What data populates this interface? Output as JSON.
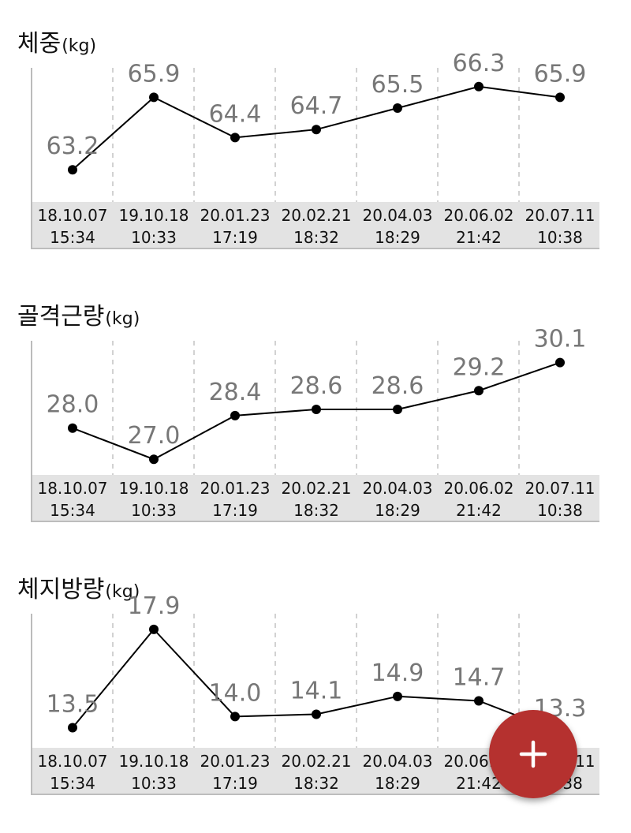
{
  "charts": [
    {
      "title": "체중",
      "unit": "(kg)",
      "chart_data": {
        "type": "line",
        "title": "체중(kg)",
        "ylim": [
          62,
          67
        ],
        "categories": [
          [
            "18.10.07",
            "15:34"
          ],
          [
            "19.10.18",
            "10:33"
          ],
          [
            "20.01.23",
            "17:19"
          ],
          [
            "20.02.21",
            "18:32"
          ],
          [
            "20.04.03",
            "18:29"
          ],
          [
            "20.06.02",
            "21:42"
          ],
          [
            "20.07.11",
            "10:38"
          ]
        ],
        "values": [
          63.2,
          65.9,
          64.4,
          64.7,
          65.5,
          66.3,
          65.9
        ],
        "labels": [
          "63.2",
          "65.9",
          "64.4",
          "64.7",
          "65.5",
          "66.3",
          "65.9"
        ]
      }
    },
    {
      "title": "골격근량",
      "unit": "(kg)",
      "chart_data": {
        "type": "line",
        "title": "골격근량(kg)",
        "ylim": [
          26.5,
          30.8
        ],
        "categories": [
          [
            "18.10.07",
            "15:34"
          ],
          [
            "19.10.18",
            "10:33"
          ],
          [
            "20.01.23",
            "17:19"
          ],
          [
            "20.02.21",
            "18:32"
          ],
          [
            "20.04.03",
            "18:29"
          ],
          [
            "20.06.02",
            "21:42"
          ],
          [
            "20.07.11",
            "10:38"
          ]
        ],
        "values": [
          28.0,
          27.0,
          28.4,
          28.6,
          28.6,
          29.2,
          30.1
        ],
        "labels": [
          "28.0",
          "27.0",
          "28.4",
          "28.6",
          "28.6",
          "29.2",
          "30.1"
        ]
      }
    },
    {
      "title": "체지방량",
      "unit": "(kg)",
      "chart_data": {
        "type": "line",
        "title": "체지방량(kg)",
        "ylim": [
          12.6,
          18.6
        ],
        "categories": [
          [
            "18.10.07",
            "15:34"
          ],
          [
            "19.10.18",
            "10:33"
          ],
          [
            "20.01.23",
            "17:19"
          ],
          [
            "20.02.21",
            "18:32"
          ],
          [
            "20.04.03",
            "18:29"
          ],
          [
            "20.06.02",
            "21:42"
          ],
          [
            "20.07.11",
            "10:38"
          ]
        ],
        "values": [
          13.5,
          17.9,
          14.0,
          14.1,
          14.9,
          14.7,
          13.3
        ],
        "labels": [
          "13.5",
          "17.9",
          "14.0",
          "14.1",
          "14.9",
          "14.7",
          "13.3"
        ]
      }
    }
  ],
  "colors": {
    "line": "#000000",
    "value_label": "#777777",
    "axis_band": "#e3e3e3",
    "grid": "#d2d2d2",
    "fab": "#b5312f"
  },
  "fab": {
    "icon": "plus-icon"
  }
}
